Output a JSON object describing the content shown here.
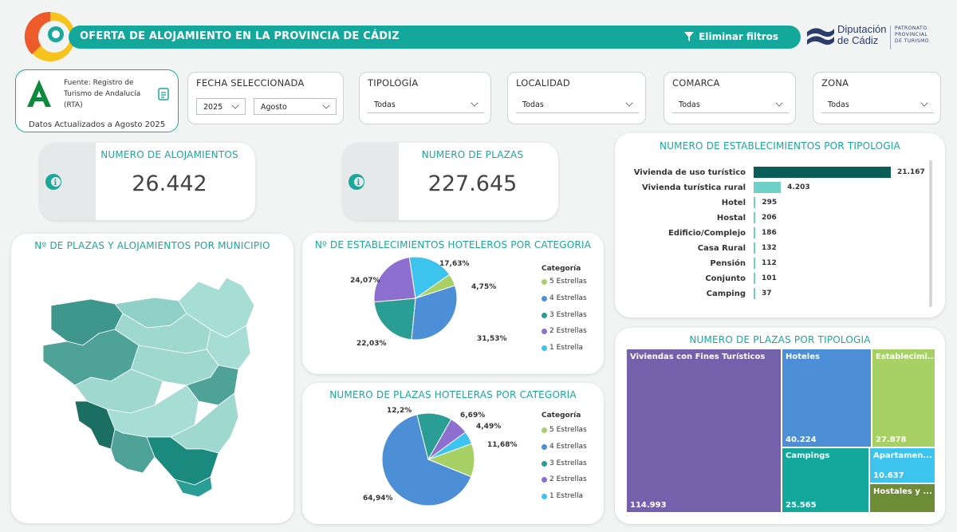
{
  "header": {
    "title": "OFERTA DE ALOJAMIENTO EN LA PROVINCIA DE CÁDIZ",
    "clear_filters": "Eliminar filtros"
  },
  "logo": {
    "name_line1": "Diputación",
    "name_line2": "de Cádiz",
    "patronato_line1": "PATRONATO",
    "patronato_line2": "PROVINCIAL",
    "patronato_line3": "DE TURISMO"
  },
  "source": {
    "text": "Fuente: Registro de Turismo de Andalucía (RTA)",
    "updated": "Datos Actualizados a Agosto 2025"
  },
  "filters": {
    "fecha": {
      "label": "FECHA SELECCIONADA",
      "year": "2025",
      "month": "Agosto"
    },
    "tipologia": {
      "label": "TIPOLOGÍA",
      "value": "Todas"
    },
    "localidad": {
      "label": "LOCALIDAD",
      "value": "Todas"
    },
    "comarca": {
      "label": "COMARCA",
      "value": "Todas"
    },
    "zona": {
      "label": "ZONA",
      "value": "Todas"
    }
  },
  "kpis": {
    "alojamientos": {
      "label": "NUMERO DE ALOJAMIENTOS",
      "value": "26.442"
    },
    "plazas": {
      "label": "NUMERO DE PLAZAS",
      "value": "227.645"
    }
  },
  "map": {
    "title": "Nº DE PLAZAS Y ALOJAMIENTOS POR MUNICIPIO"
  },
  "colors": {
    "accent": "#14a89d",
    "dark_teal": "#0b5e57",
    "cat5": "#a7d165",
    "cat4": "#4d8fd6",
    "cat3": "#2a9d94",
    "cat2": "#8d6fcf",
    "cat1": "#3cc3ee"
  },
  "pie_establecimientos": {
    "title": "Nº DE ESTABLECIMIENTOS HOTELEROS POR CATEGORIA",
    "legend_title": "Categoría"
  },
  "pie_plazas": {
    "title": "NUMERO DE PLAZAS HOTELERAS POR CATEGORIA",
    "legend_title": "Categoría"
  },
  "bars": {
    "title": "NUMERO DE ESTABLECIMIENTOS POR TIPOLOGIA"
  },
  "treemap": {
    "title": "NUMERO DE PLAZAS POR TIPOLOGIA"
  },
  "chart_data": [
    {
      "type": "pie",
      "title": "Nº DE ESTABLECIMIENTOS HOTELEROS POR CATEGORIA",
      "legend_title": "Categoría",
      "categories": [
        "5 Estrellas",
        "4 Estrellas",
        "3 Estrellas",
        "2 Estrellas",
        "1 Estrella"
      ],
      "values": [
        4.75,
        31.53,
        22.03,
        24.07,
        17.63
      ],
      "labels": [
        "4,75%",
        "31,53%",
        "22,03%",
        "24,07%",
        "17,63%"
      ],
      "legend_position": "right"
    },
    {
      "type": "pie",
      "title": "NUMERO DE PLAZAS HOTELERAS POR CATEGORIA",
      "legend_title": "Categoría",
      "categories": [
        "5 Estrellas",
        "4 Estrellas",
        "3 Estrellas",
        "2 Estrellas",
        "1 Estrella"
      ],
      "values": [
        11.68,
        64.94,
        12.2,
        6.69,
        4.49
      ],
      "labels": [
        "11,68%",
        "64,94%",
        "12,2%",
        "6,69%",
        "4,49%"
      ],
      "legend_position": "right"
    },
    {
      "type": "bar",
      "orientation": "horizontal",
      "title": "NUMERO DE ESTABLECIMIENTOS POR TIPOLOGIA",
      "categories": [
        "Vivienda de uso turístico",
        "Vivienda turística rural",
        "Hotel",
        "Hostal",
        "Edificio/Complejo",
        "Casa Rural",
        "Pensión",
        "Conjunto",
        "Camping"
      ],
      "values": [
        21167,
        4203,
        295,
        206,
        186,
        132,
        112,
        101,
        37
      ],
      "labels": [
        "21.167",
        "4.203",
        "295",
        "206",
        "186",
        "132",
        "112",
        "101",
        "37"
      ]
    },
    {
      "type": "treemap",
      "title": "NUMERO DE PLAZAS POR TIPOLOGIA",
      "categories": [
        "Viviendas con Fines Turísticos",
        "Hoteles",
        "Establecimi...",
        "Campings",
        "Apartamen...",
        "Hostales y ..."
      ],
      "values": [
        114993,
        40224,
        27878,
        25565,
        10637,
        null
      ],
      "labels": [
        "114.993",
        "40.224",
        "27.878",
        "25.565",
        "10.637",
        ""
      ]
    }
  ]
}
